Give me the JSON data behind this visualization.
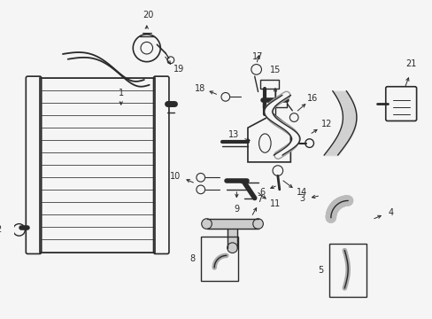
{
  "bg_color": "#f5f5f5",
  "line_color": "#2a2a2a",
  "figsize": [
    4.89,
    3.6
  ],
  "dpi": 100,
  "xlim": [
    0,
    489
  ],
  "ylim": [
    0,
    360
  ]
}
